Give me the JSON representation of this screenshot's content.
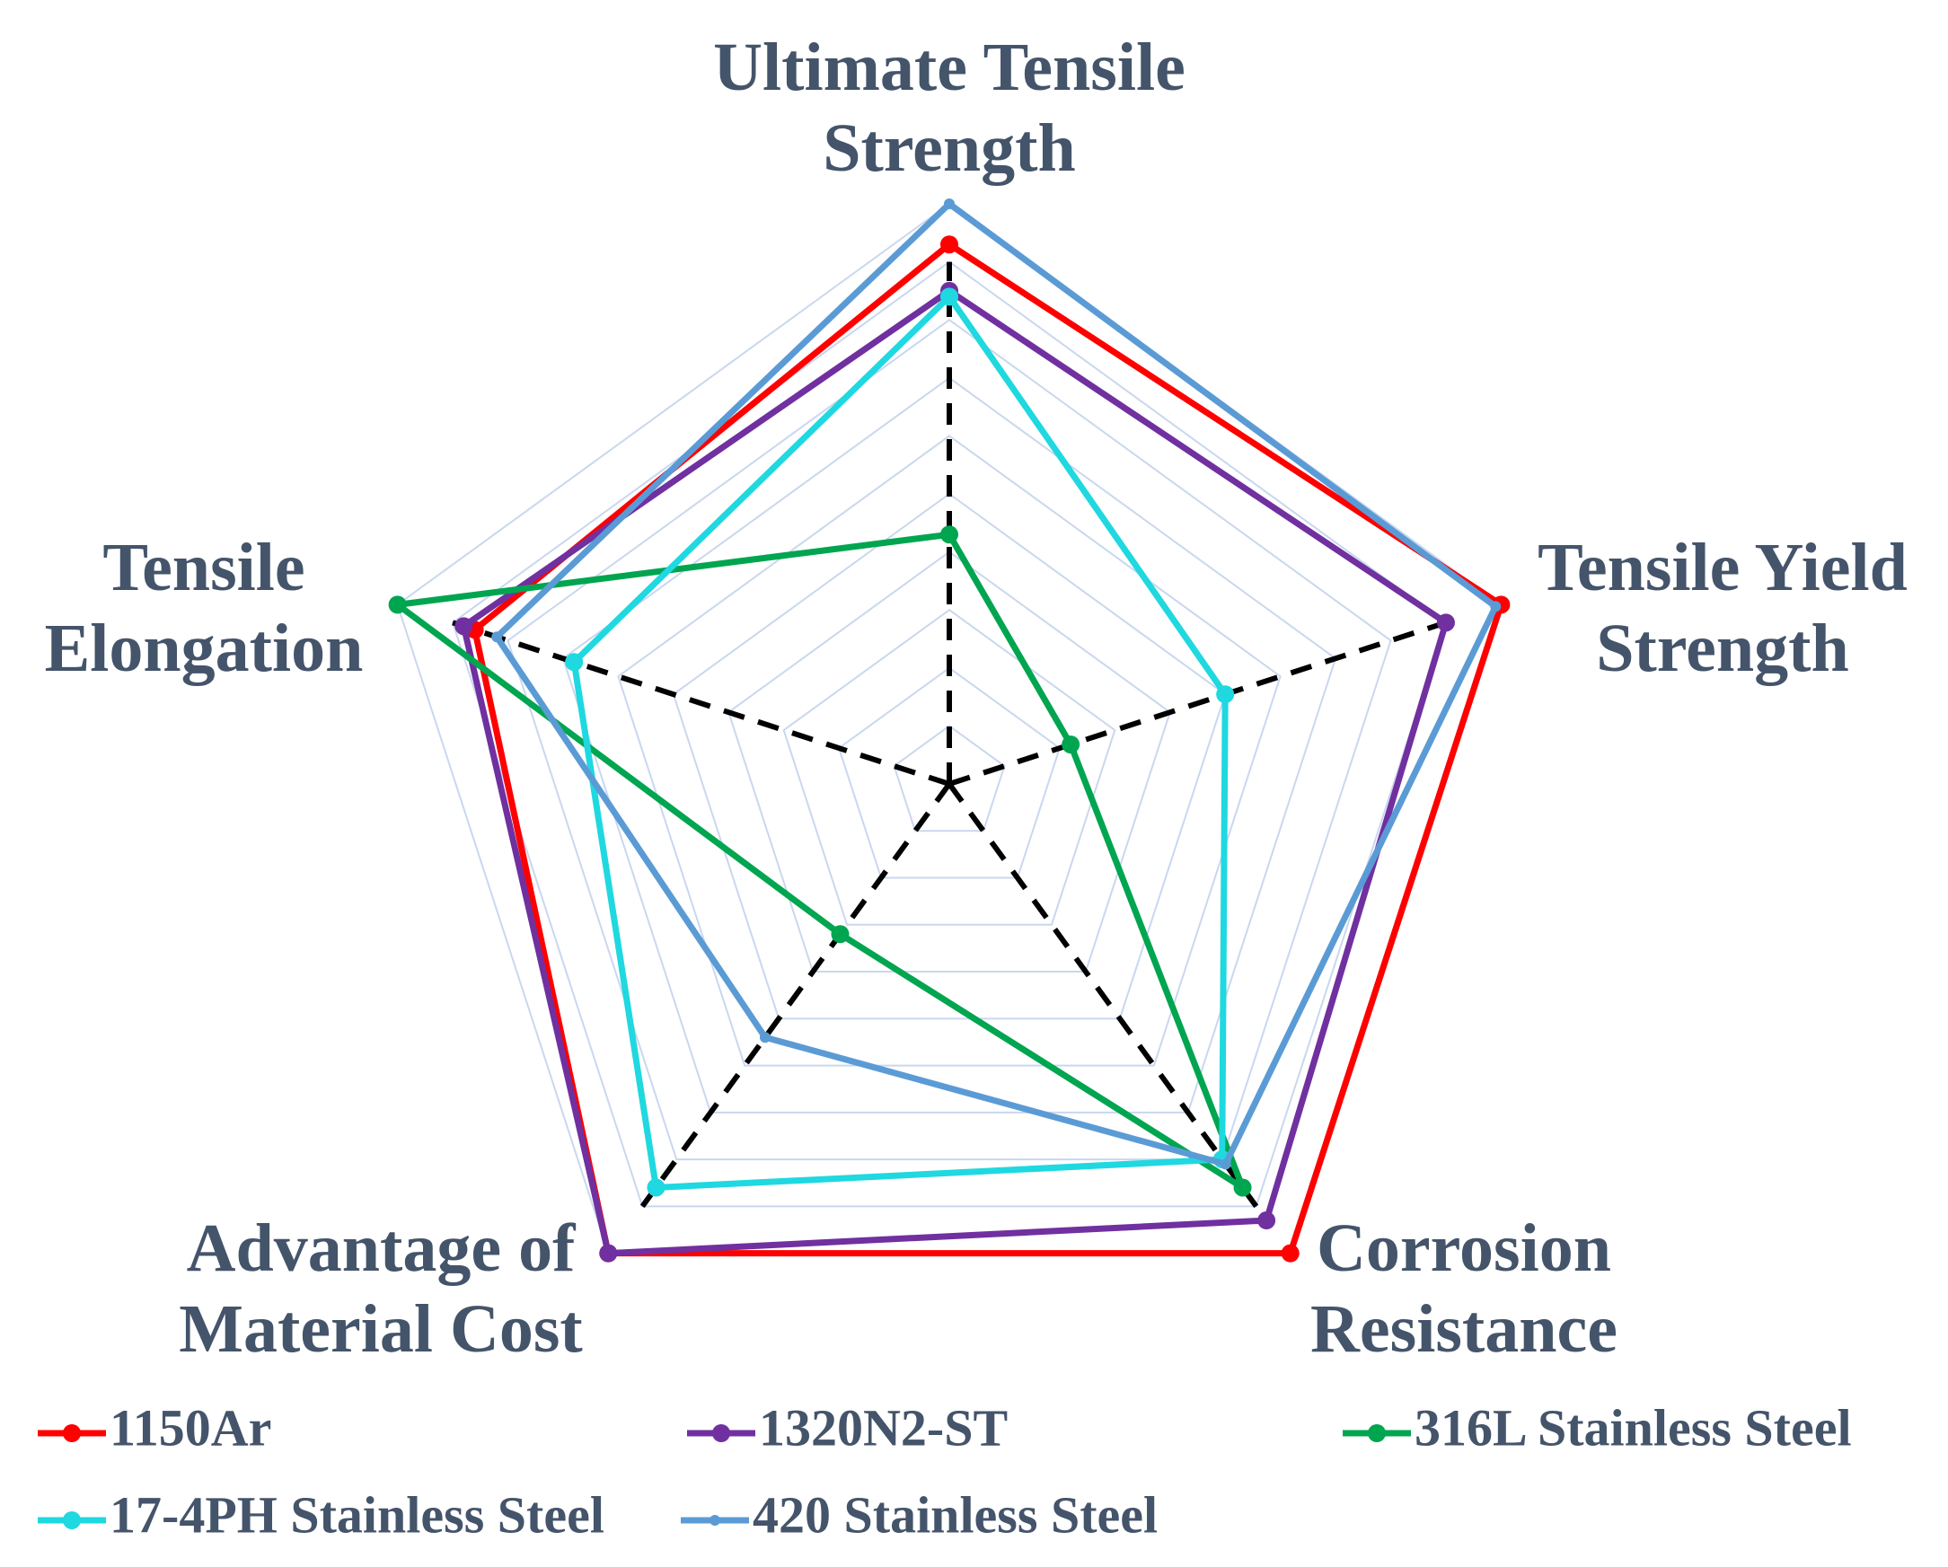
{
  "chart_data": {
    "type": "radar",
    "categories": [
      "Ultimate Tensile Strength",
      "Tensile Yield Strength",
      "Corrosion Resistance",
      "Advantage of Material Cost",
      "Tensile Elongation"
    ],
    "rlim": [
      0,
      1
    ],
    "rticks": [
      0.1,
      0.2,
      0.3,
      0.4,
      0.5,
      0.6,
      0.7,
      0.8,
      0.9,
      1.0
    ],
    "grid": true,
    "legend": "bottom",
    "series": [
      {
        "name": "1150Ar",
        "color": "#ff0000",
        "values": [
          0.93,
          1.0,
          1.0,
          1.0,
          0.86
        ]
      },
      {
        "name": "1320N2-ST",
        "color": "#7030a0",
        "values": [
          0.85,
          0.9,
          0.93,
          1.0,
          0.88
        ]
      },
      {
        "name": "316L Stainless Steel",
        "color": "#00a550",
        "values": [
          0.43,
          0.22,
          0.86,
          0.32,
          1.0
        ]
      },
      {
        "name": "17-4PH Stainless Steel",
        "color": "#1fd8e0",
        "values": [
          0.84,
          0.5,
          0.8,
          0.86,
          0.68
        ]
      },
      {
        "name": "420 Stainless Steel",
        "color": "#5b9bd5",
        "values": [
          1.0,
          0.99,
          0.81,
          0.54,
          0.82
        ]
      }
    ]
  }
}
